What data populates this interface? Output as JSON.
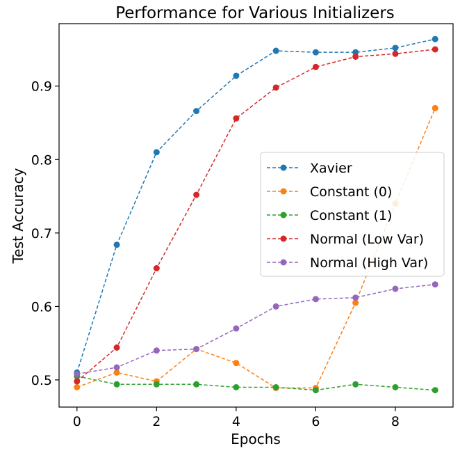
{
  "chart_data": {
    "type": "line",
    "title": "Performance for Various Initializers",
    "xlabel": "Epochs",
    "ylabel": "Test Accuracy",
    "xlim": [
      -0.45,
      9.45
    ],
    "ylim": [
      0.463,
      0.985
    ],
    "xticks": [
      0,
      2,
      4,
      6,
      8
    ],
    "yticks": [
      0.5,
      0.6,
      0.7,
      0.8,
      0.9
    ],
    "xtick_labels": [
      "0",
      "2",
      "4",
      "6",
      "8"
    ],
    "ytick_labels": [
      "0.5",
      "0.6",
      "0.7",
      "0.8",
      "0.9"
    ],
    "grid": false,
    "legend_position": "center-right",
    "x": [
      0,
      1,
      2,
      3,
      4,
      5,
      6,
      7,
      8,
      9
    ],
    "series": [
      {
        "name": "Xavier",
        "color": "#1f77b4",
        "values": [
          0.51,
          0.684,
          0.81,
          0.866,
          0.914,
          0.948,
          0.946,
          0.946,
          0.952,
          0.964
        ]
      },
      {
        "name": "Constant (0)",
        "color": "#ff7f0e",
        "values": [
          0.49,
          0.51,
          0.498,
          0.542,
          0.523,
          0.489,
          0.489,
          0.605,
          0.74,
          0.87
        ]
      },
      {
        "name": "Constant (1)",
        "color": "#2ca02c",
        "values": [
          0.505,
          0.494,
          0.494,
          0.494,
          0.49,
          0.49,
          0.486,
          0.494,
          0.49,
          0.486
        ]
      },
      {
        "name": "Normal (Low Var)",
        "color": "#d62728",
        "values": [
          0.498,
          0.544,
          0.652,
          0.752,
          0.856,
          0.898,
          0.926,
          0.94,
          0.944,
          0.95
        ]
      },
      {
        "name": "Normal (High Var)",
        "color": "#9467bd",
        "values": [
          0.508,
          0.517,
          0.54,
          0.542,
          0.57,
          0.6,
          0.61,
          0.612,
          0.624,
          0.63
        ]
      }
    ]
  }
}
